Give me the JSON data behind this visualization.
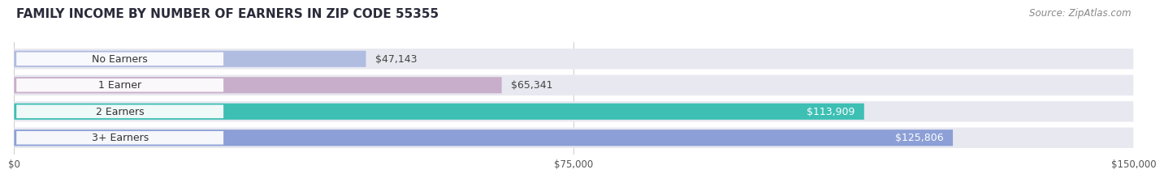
{
  "title": "FAMILY INCOME BY NUMBER OF EARNERS IN ZIP CODE 55355",
  "source": "Source: ZipAtlas.com",
  "categories": [
    "No Earners",
    "1 Earner",
    "2 Earners",
    "3+ Earners"
  ],
  "values": [
    47143,
    65341,
    113909,
    125806
  ],
  "labels": [
    "$47,143",
    "$65,341",
    "$113,909",
    "$125,806"
  ],
  "bar_colors": [
    "#b0bce0",
    "#c8aecb",
    "#3dbfb4",
    "#8c9fd6"
  ],
  "track_color": "#e8e8f0",
  "background_color": "#ffffff",
  "xlim": [
    0,
    150000
  ],
  "xticks": [
    0,
    75000,
    150000
  ],
  "xticklabels": [
    "$0",
    "$75,000",
    "$150,000"
  ],
  "title_fontsize": 11,
  "source_fontsize": 8.5,
  "label_fontsize": 9,
  "category_fontsize": 9,
  "label_inside_threshold": 0.55
}
